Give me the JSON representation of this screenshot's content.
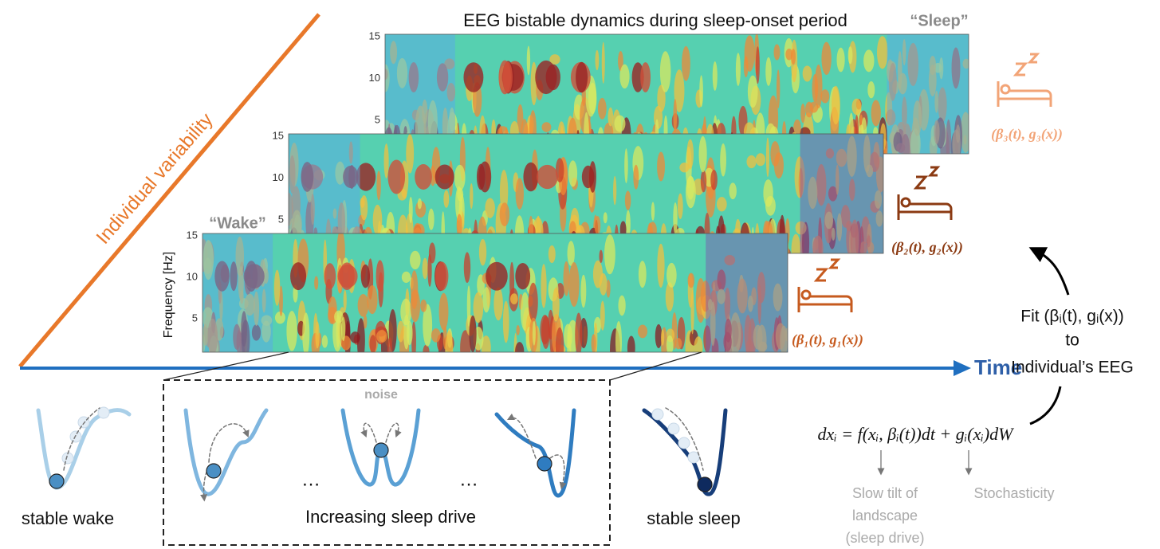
{
  "title": "EEG bistable dynamics during sleep-onset period",
  "sleep_label": "“Sleep”",
  "wake_label": "“Wake”",
  "variability_label": "Individual variability",
  "y_axis_label": "Frequency [Hz]",
  "panels": [
    {
      "yticks": [
        15,
        10,
        5
      ],
      "params": "(β₁(t), g₁(x))"
    },
    {
      "yticks": [
        15,
        10,
        5
      ],
      "params": "(β₂(t), g₂(x))"
    },
    {
      "yticks": [
        15,
        10,
        5
      ],
      "params": "(β₃(t), g₃(x))"
    }
  ],
  "time_label": "Time",
  "fit": [
    "Fit (βᵢ(t), gᵢ(x))",
    "to",
    "Individual’s EEG"
  ],
  "noise_label": "noise",
  "ellipses": [
    "…",
    "…"
  ],
  "landscapes": {
    "stable_wake": "stable wake",
    "increasing": "Increasing sleep drive",
    "stable_sleep": "stable sleep"
  },
  "equation": "dxᵢ = f(xᵢ, βᵢ(t))dt + gᵢ(xᵢ)dW",
  "tilt_note": [
    "Slow tilt of",
    "landscape",
    "(sleep drive)"
  ],
  "stochasticity": "Stochasticity"
}
